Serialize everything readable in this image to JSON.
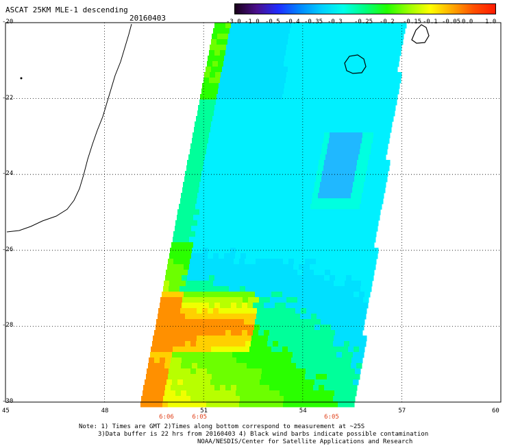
{
  "header": {
    "title": "ASCAT 25KM MLE-1 descending",
    "date": "20160403"
  },
  "colorbar": {
    "labels": [
      "-3.0",
      "-1.0",
      "-0.5",
      "-0.4",
      "-0.35",
      "-0.3",
      "-0.25",
      "-0.2",
      "-0.15",
      "-0.1",
      "-0.05",
      "0.0",
      "1.0"
    ],
    "colors": [
      "#1a001a",
      "#4a0f8c",
      "#1f2cff",
      "#0088ff",
      "#00cfff",
      "#00ffea",
      "#00ff80",
      "#22ff00",
      "#99ff00",
      "#ffff00",
      "#ffaa00",
      "#ff5000",
      "#ff1a00"
    ]
  },
  "axes": {
    "lat_labels": [
      "-20",
      "-22",
      "-24",
      "-26",
      "-28",
      "-30"
    ],
    "lon_labels": [
      "45",
      "48",
      "51",
      "54",
      "57",
      "60"
    ],
    "lat_values": [
      -20,
      -22,
      -24,
      -26,
      -28,
      -30
    ],
    "lon_values": [
      45,
      48,
      51,
      54,
      57,
      60
    ]
  },
  "times": [
    {
      "label": "6:06",
      "lon": 49.9
    },
    {
      "label": "6:05",
      "lon": 50.9
    },
    {
      "label": "6:05",
      "lon": 54.9
    }
  ],
  "notes": {
    "line1": "Note: 1) Times are GMT 2)Times along bottom correspond to measurement at ~25S",
    "line2": "3)Data buffer is 22 hrs from 20160403 4) Black wind barbs indicate possible contamination",
    "line3": "NOAA/NESDIS/Center for Satellite Applications and Research"
  }
}
